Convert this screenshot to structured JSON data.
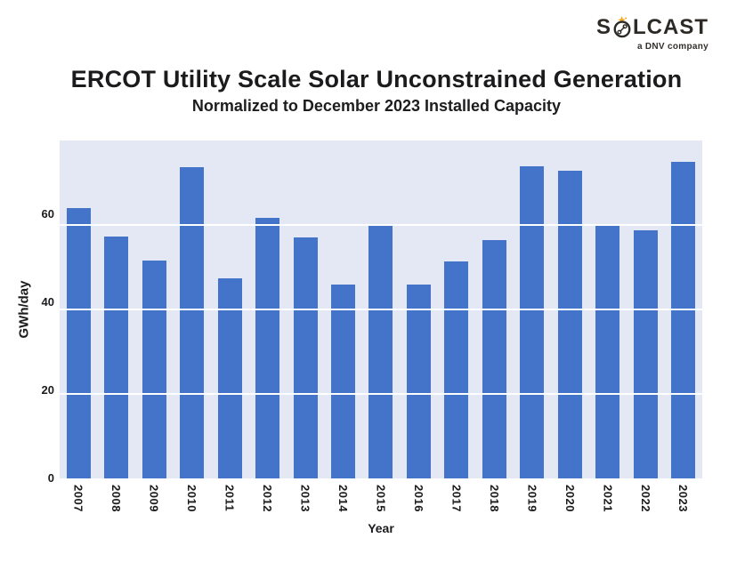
{
  "logo": {
    "brand_pre": "S",
    "brand_post": "LCAST",
    "tagline": "a DNV company",
    "text_color": "#2d2a26",
    "star_color": "#f6a821"
  },
  "header": {
    "title": "ERCOT Utility Scale Solar Unconstrained Generation",
    "subtitle": "Normalized to December 2023 Installed Capacity"
  },
  "chart_data": {
    "type": "bar",
    "title": "ERCOT Utility Scale Solar Unconstrained Generation",
    "subtitle": "Normalized to December 2023 Installed Capacity",
    "xlabel": "Year",
    "ylabel": "GWh/day",
    "categories": [
      "2007",
      "2008",
      "2009",
      "2010",
      "2011",
      "2012",
      "2013",
      "2014",
      "2015",
      "2016",
      "2017",
      "2018",
      "2019",
      "2020",
      "2021",
      "2022",
      "2023"
    ],
    "values": [
      64.0,
      57.2,
      51.6,
      73.7,
      47.3,
      61.6,
      57.1,
      45.9,
      60.2,
      45.8,
      51.4,
      56.5,
      73.9,
      72.9,
      59.7,
      58.8,
      75.0
    ],
    "ylim": [
      0,
      80
    ],
    "yticks": [
      0,
      20,
      40,
      60
    ],
    "grid": true,
    "legend": false,
    "bar_color": "#4474c9",
    "plot_bg_color": "#e4e8f4",
    "gridline_color": "#ffffff"
  }
}
